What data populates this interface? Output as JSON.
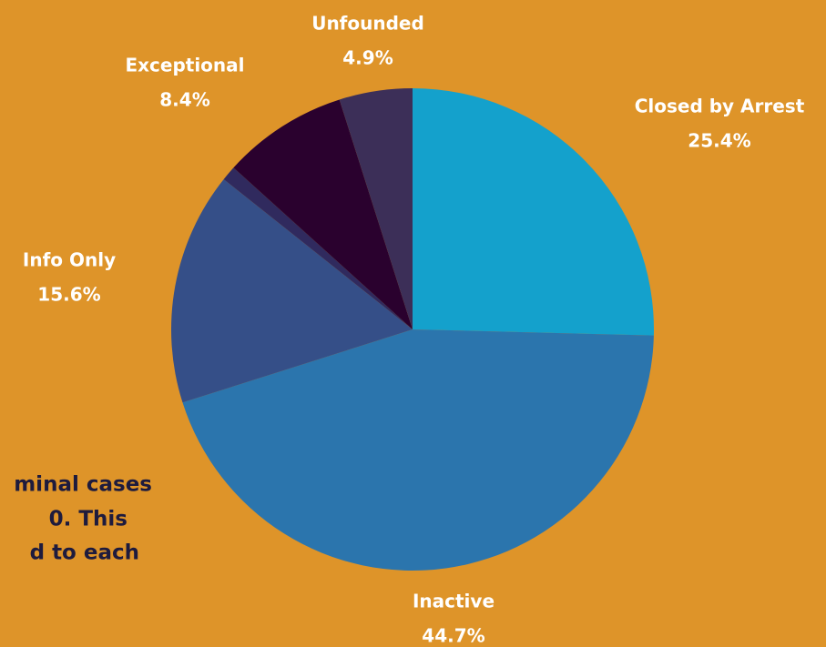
{
  "chart_data": {
    "type": "pie",
    "categories": [
      "Closed by Arrest",
      "Inactive",
      "Info Only",
      null,
      "Exceptional",
      "Unfounded"
    ],
    "values": [
      25.4,
      44.7,
      15.6,
      1.0,
      8.4,
      4.9
    ],
    "value_labels": [
      "25.4%",
      "44.7%",
      "15.6%",
      null,
      "8.4%",
      "4.9%"
    ],
    "colors": [
      "#14a1cc",
      "#2b75ad",
      "#354f88",
      "#302a5e",
      "#2a012e",
      "#3c2f58"
    ]
  },
  "background_text": [
    "minal cases",
    "0. This",
    "d to each"
  ]
}
